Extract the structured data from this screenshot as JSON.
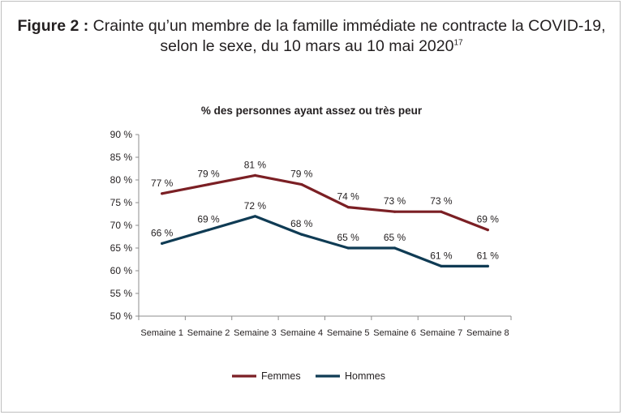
{
  "figure": {
    "label": "Figure 2 :",
    "title_line1": "Crainte qu’un membre de la famille immédiate ne contracte la COVID-19,",
    "title_line2": "selon le sexe, du 10 mars au 10 mai 2020",
    "footnote": "17"
  },
  "chart_data": {
    "type": "line",
    "title": "% des personnes ayant assez ou très peur",
    "categories": [
      "Semaine 1",
      "Semaine 2",
      "Semaine 3",
      "Semaine 4",
      "Semaine 5",
      "Semaine 6",
      "Semaine 7",
      "Semaine 8"
    ],
    "y_ticks": [
      "50 %",
      "55 %",
      "60 %",
      "65 %",
      "70 %",
      "75 %",
      "80 %",
      "85 %",
      "90 %"
    ],
    "ylim": [
      50,
      90
    ],
    "series": [
      {
        "name": "Femmes",
        "color": "#7b1f24",
        "values": [
          77,
          79,
          81,
          79,
          74,
          73,
          73,
          69
        ],
        "labels": [
          "77 %",
          "79 %",
          "81 %",
          "79 %",
          "74 %",
          "73 %",
          "73 %",
          "69 %"
        ]
      },
      {
        "name": "Hommes",
        "color": "#0f3b54",
        "values": [
          66,
          69,
          72,
          68,
          65,
          65,
          61,
          61
        ],
        "labels": [
          "66 %",
          "69 %",
          "72 %",
          "68 %",
          "65 %",
          "65 %",
          "61 %",
          "61 %"
        ]
      }
    ],
    "legend_position": "bottom",
    "grid": false
  }
}
